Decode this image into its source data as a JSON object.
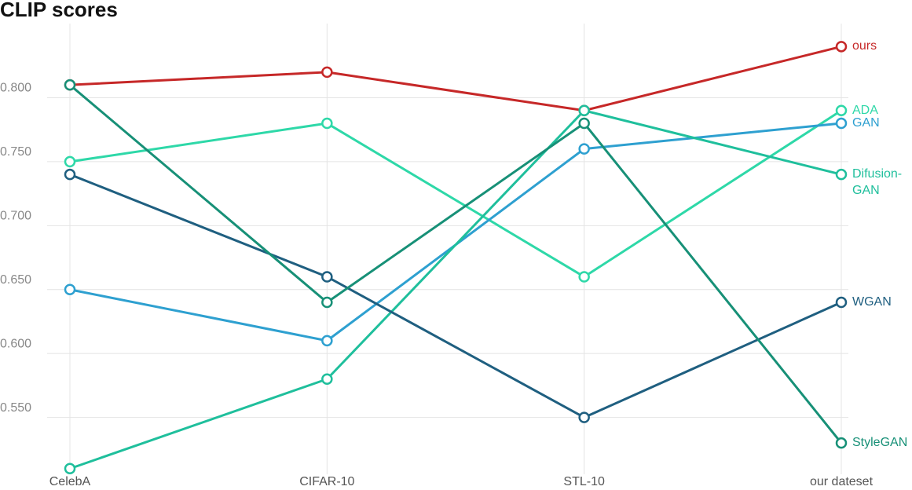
{
  "chart_data": {
    "type": "line",
    "title": "CLIP scores",
    "categories": [
      "CelebA",
      "CIFAR-10",
      "STL-10",
      "our dateset"
    ],
    "series": [
      {
        "name": "ours",
        "color": "#c62828",
        "values": [
          0.81,
          0.82,
          0.79,
          0.84
        ]
      },
      {
        "name": "ADA",
        "color": "#2ed8a8",
        "values": [
          0.75,
          0.78,
          0.66,
          0.79
        ]
      },
      {
        "name": "GAN",
        "color": "#2ea0d0",
        "values": [
          0.65,
          0.61,
          0.76,
          0.78
        ]
      },
      {
        "name": "Difusion-GAN",
        "color": "#1fbf9c",
        "values": [
          0.51,
          0.58,
          0.79,
          0.74
        ]
      },
      {
        "name": "WGAN",
        "color": "#1f5f80",
        "values": [
          0.74,
          0.66,
          0.55,
          0.64
        ]
      },
      {
        "name": "StyleGAN",
        "color": "#179077",
        "values": [
          0.81,
          0.64,
          0.78,
          0.53
        ]
      }
    ],
    "ylim": [
      0.508,
      0.858
    ],
    "yticks": [
      {
        "value": 0.55,
        "label": "0.550"
      },
      {
        "value": 0.6,
        "label": "0.600"
      },
      {
        "value": 0.65,
        "label": "0.650"
      },
      {
        "value": 0.7,
        "label": "0.700"
      },
      {
        "value": 0.75,
        "label": "0.750"
      },
      {
        "value": 0.8,
        "label": "0.800"
      }
    ],
    "grid": true
  }
}
